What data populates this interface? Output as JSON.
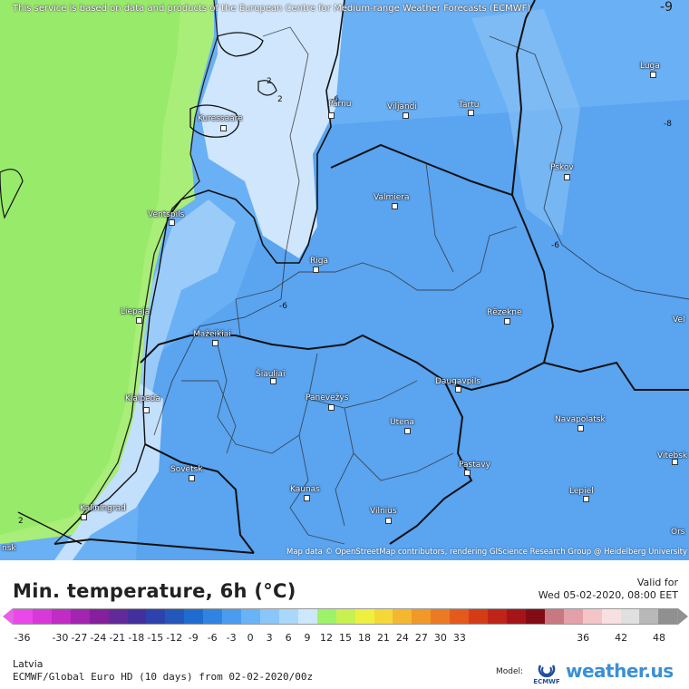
{
  "header": {
    "attribution_top": "This service is based on data and products of the European Centre for Medium-range Weather Forecasts (ECMWF)",
    "attribution_bottom": "Map data © OpenStreetMap contributors, rendering GIScience Research Group @ Heidelberg University",
    "corner_value": "-9"
  },
  "cities": [
    {
      "name": "Pärnu"
    },
    {
      "name": "Viljandi"
    },
    {
      "name": "Tartu"
    },
    {
      "name": "Luga"
    },
    {
      "name": "Kuressaare"
    },
    {
      "name": "Pskov"
    },
    {
      "name": "Valmiera"
    },
    {
      "name": "Ventspils"
    },
    {
      "name": "Riga"
    },
    {
      "name": "Liepaja"
    },
    {
      "name": "Rēzekne"
    },
    {
      "name": "Mažeikiai"
    },
    {
      "name": "Šiauliai"
    },
    {
      "name": "Daugavpils"
    },
    {
      "name": "Klaipeda"
    },
    {
      "name": "Panevėžys"
    },
    {
      "name": "Utena"
    },
    {
      "name": "Navapolatsk"
    },
    {
      "name": "Vitebsk"
    },
    {
      "name": "Sovetsk"
    },
    {
      "name": "Pastavy"
    },
    {
      "name": "Kaunas"
    },
    {
      "name": "Lepiel"
    },
    {
      "name": "Kaliningrad"
    },
    {
      "name": "Vilnius"
    },
    {
      "name": "Vel"
    },
    {
      "name": "Ors"
    },
    {
      "name": "nsk"
    }
  ],
  "contour_labels": [
    "2",
    "2",
    "-6",
    "-6",
    "-6",
    "-6",
    "-8",
    "2"
  ],
  "legend": {
    "title": "Min. temperature, 6h (°C)",
    "valid_label": "Valid for",
    "valid_time": "Wed 05-02-2020, 08:00 EET",
    "ticks": [
      "-36",
      "-30",
      "-27",
      "-24",
      "-21",
      "-18",
      "-15",
      "-12",
      "-9",
      "-6",
      "-3",
      "0",
      "3",
      "6",
      "9",
      "12",
      "15",
      "18",
      "21",
      "24",
      "27",
      "30",
      "33",
      "36",
      "42",
      "48"
    ],
    "colors": [
      "#ea48ea",
      "#d838d8",
      "#c02cc4",
      "#a224b0",
      "#84209c",
      "#622a98",
      "#44309c",
      "#2c42ac",
      "#2456bc",
      "#1f6cd0",
      "#2f84e2",
      "#4a9cf0",
      "#68b2f6",
      "#8ac6f8",
      "#aad8fa",
      "#cce8fc",
      "#9ef268",
      "#c8f050",
      "#eef040",
      "#f4d838",
      "#f4b830",
      "#f09828",
      "#ec7a22",
      "#e45a1c",
      "#d43c18",
      "#c02418",
      "#a41418",
      "#820c14",
      "#c87880",
      "#e4a0a8",
      "#f4c4c8",
      "#f8e0e2",
      "#e0e0e0",
      "#b8b8b8",
      "#909090"
    ]
  },
  "footer": {
    "region": "Latvia",
    "model": "ECMWF/Global Euro HD (10 days) from 02-02-2020/00z",
    "model_label": "Model:",
    "ecmwf": "ECMWF",
    "brand": "weather.us"
  }
}
